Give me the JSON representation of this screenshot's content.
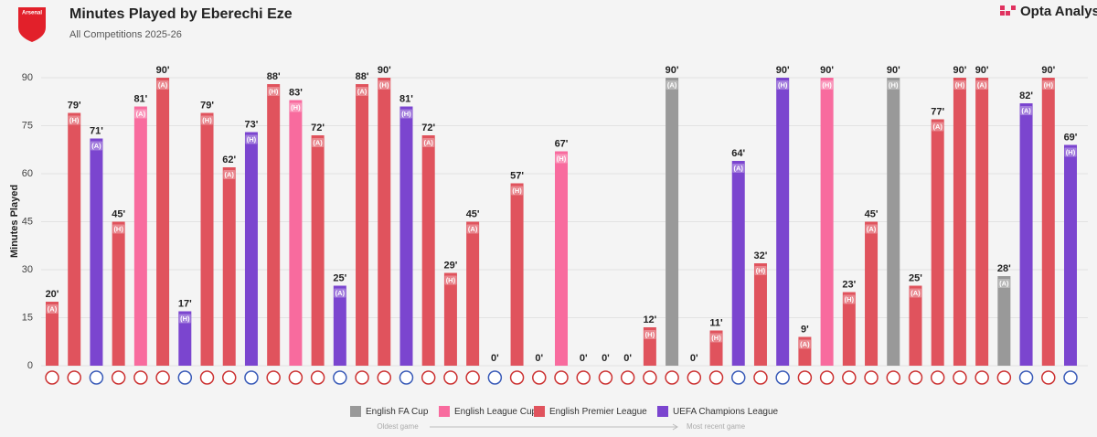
{
  "brand": "Opta Analyst",
  "badge": "Arsenal",
  "chart_data": {
    "type": "bar",
    "title": "Minutes Played by Eberechi Eze",
    "subtitle": "All Competitions 2025-26",
    "ylabel": "Minutes Played",
    "values": [
      20,
      79,
      71,
      45,
      81,
      90,
      17,
      79,
      62,
      73,
      88,
      83,
      72,
      25,
      88,
      90,
      81,
      72,
      29,
      45,
      0,
      57,
      0,
      67,
      0,
      0,
      0,
      12,
      90,
      0,
      11,
      64,
      32,
      90,
      9,
      90,
      23,
      45,
      90,
      25,
      77,
      90,
      90,
      28,
      82,
      90,
      69
    ],
    "value_labels": [
      "20'",
      "79'",
      "71'",
      "45'",
      "81'",
      "90'",
      "17'",
      "79'",
      "62'",
      "73'",
      "88'",
      "83'",
      "72'",
      "25'",
      "88'",
      "90'",
      "81'",
      "72'",
      "29'",
      "45'",
      "0'",
      "57'",
      "0'",
      "67'",
      "0'",
      "0'",
      "0'",
      "12'",
      "90'",
      "0'",
      "11'",
      "64'",
      "32'",
      "90'",
      "9'",
      "90'",
      "23'",
      "45'",
      "90'",
      "25'",
      "77'",
      "90'",
      "90'",
      "28'",
      "82'",
      "90'",
      "69'"
    ],
    "venue_labels": [
      "(A)",
      "(H)",
      "(A)",
      "(H)",
      "(A)",
      "(A)",
      "(H)",
      "(H)",
      "(A)",
      "(H)",
      "(H)",
      "(H)",
      "(A)",
      "(A)",
      "(A)",
      "(H)",
      "(H)",
      "(A)",
      "(H)",
      "(A)",
      null,
      "(H)",
      null,
      "(H)",
      null,
      null,
      null,
      "(H)",
      "(A)",
      null,
      "(H)",
      "(A)",
      "(H)",
      "(H)",
      "(A)",
      "(H)",
      "(H)",
      "(A)",
      "(H)",
      "(A)",
      "(A)",
      "(H)",
      "(A)",
      "(A)",
      "(A)",
      "(H)",
      "(H)"
    ],
    "colors": [
      "#e0535d",
      "#e0535d",
      "#7b45cf",
      "#e0535d",
      "#f86b9e",
      "#e0535d",
      "#7b45cf",
      "#e0535d",
      "#e0535d",
      "#7b45cf",
      "#e0535d",
      "#f86b9e",
      "#e0535d",
      "#7b45cf",
      "#e0535d",
      "#e0535d",
      "#7b45cf",
      "#e0535d",
      "#e0535d",
      "#e0535d",
      "#7b45cf",
      "#e0535d",
      "#e0535d",
      "#f86b9e",
      "#e0535d",
      "#e0535d",
      "#e0535d",
      "#e0535d",
      "#999999",
      "#e0535d",
      "#e0535d",
      "#7b45cf",
      "#e0535d",
      "#7b45cf",
      "#e0535d",
      "#f86b9e",
      "#e0535d",
      "#e0535d",
      "#999999",
      "#e0535d",
      "#e0535d",
      "#e0535d",
      "#e0535d",
      "#999999",
      "#7b45cf",
      "#e0535d",
      "#7b45cf"
    ],
    "legend": [
      {
        "name": "English FA Cup",
        "color": "#999999"
      },
      {
        "name": "English League Cup",
        "color": "#f86b9e"
      },
      {
        "name": "English Premier League",
        "color": "#e0535d"
      },
      {
        "name": "UEFA Champions League",
        "color": "#7b45cf"
      }
    ],
    "ylim": [
      0,
      97
    ],
    "yticks": [
      0,
      15,
      30,
      45,
      60,
      75,
      90
    ],
    "grid": true,
    "timeline": [
      "Oldest game",
      "Most recent game"
    ]
  }
}
